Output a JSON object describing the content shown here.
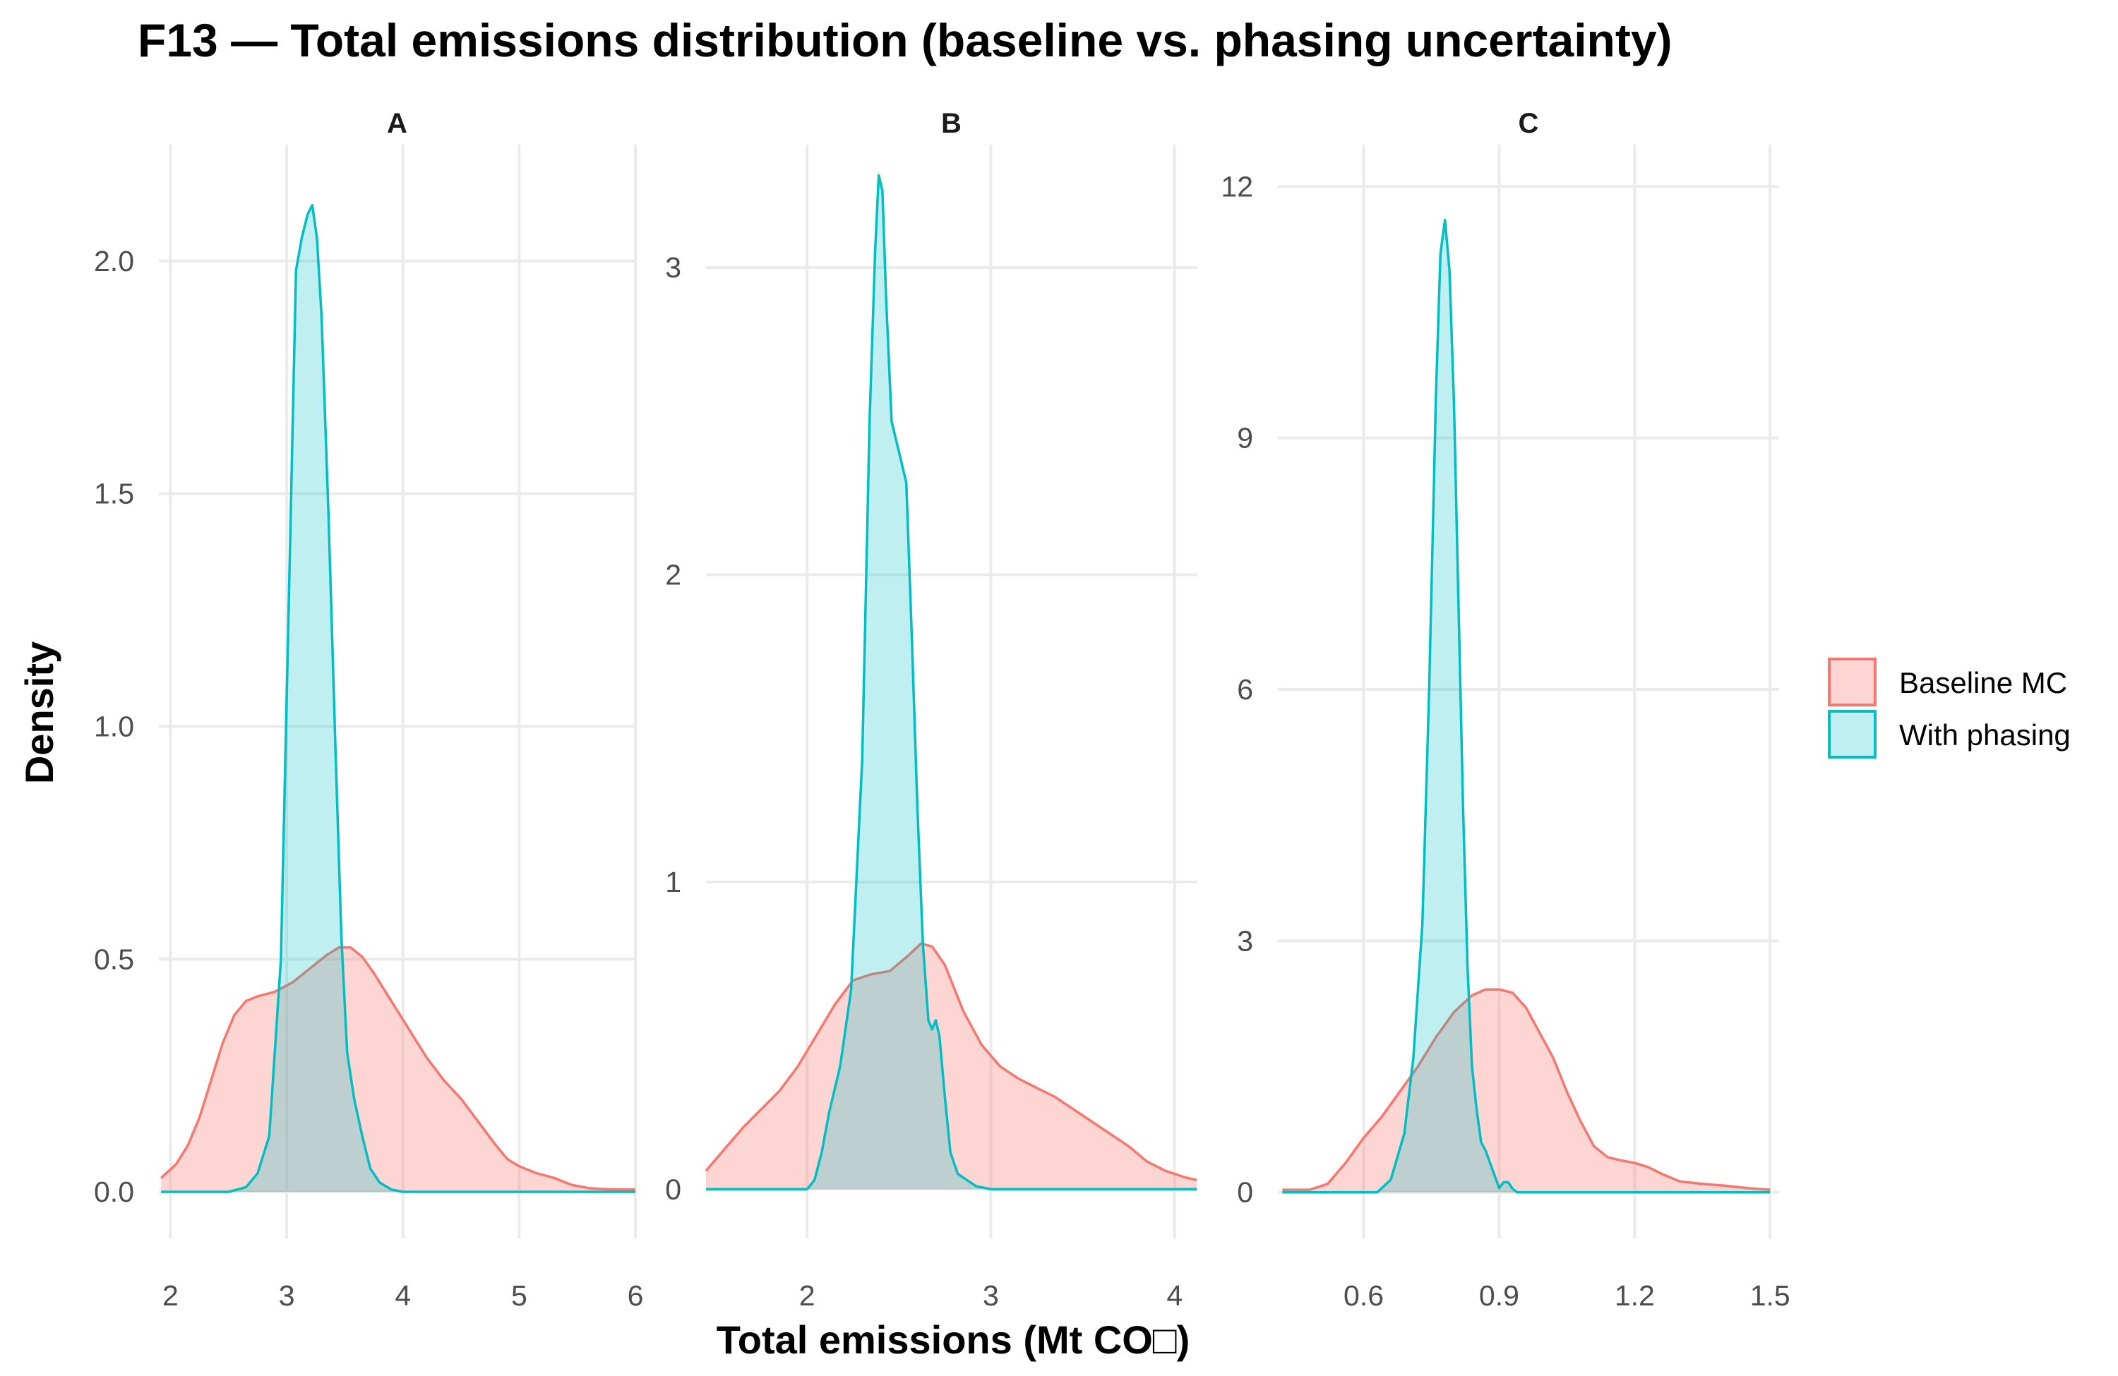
{
  "chart_data": {
    "type": "area",
    "title": "F13 — Total emissions distribution (baseline vs. phasing uncertainty)",
    "xlabel": "Total emissions (Mt CO□)",
    "ylabel": "Density",
    "legend": {
      "placement": "right",
      "entries": [
        "Baseline MC",
        "With phasing"
      ]
    },
    "colors": {
      "Baseline MC": {
        "line": "#F8766D",
        "fill": "#F8766D"
      },
      "With phasing": {
        "line": "#00BFC4",
        "fill": "#00BFC4"
      }
    },
    "grid": true,
    "panels": [
      {
        "label": "A",
        "xlim": [
          1.9,
          6.0
        ],
        "ylim": [
          -0.1,
          2.25
        ],
        "xticks": [
          2,
          3,
          4,
          5,
          6
        ],
        "xtick_labels": [
          "2",
          "3",
          "4",
          "5",
          "6"
        ],
        "yticks": [
          0,
          0.5,
          1.0,
          1.5,
          2.0
        ],
        "ytick_labels": [
          "0.0",
          "0.5",
          "1.0",
          "1.5",
          "2.0"
        ],
        "series": [
          {
            "name": "Baseline MC",
            "x": [
              1.92,
              2.05,
              2.15,
              2.25,
              2.35,
              2.45,
              2.55,
              2.65,
              2.75,
              2.9,
              3.05,
              3.2,
              3.35,
              3.45,
              3.55,
              3.65,
              3.75,
              3.85,
              3.95,
              4.05,
              4.2,
              4.35,
              4.5,
              4.65,
              4.8,
              4.9,
              5.0,
              5.15,
              5.3,
              5.45,
              5.6,
              5.8,
              6.0
            ],
            "y": [
              0.03,
              0.06,
              0.1,
              0.16,
              0.24,
              0.32,
              0.38,
              0.41,
              0.42,
              0.43,
              0.45,
              0.48,
              0.51,
              0.525,
              0.525,
              0.505,
              0.47,
              0.43,
              0.39,
              0.35,
              0.29,
              0.24,
              0.2,
              0.15,
              0.1,
              0.07,
              0.055,
              0.04,
              0.03,
              0.015,
              0.008,
              0.005,
              0.005
            ]
          },
          {
            "name": "With phasing",
            "x": [
              1.92,
              2.5,
              2.65,
              2.75,
              2.85,
              2.95,
              3.03,
              3.08,
              3.13,
              3.18,
              3.22,
              3.26,
              3.3,
              3.36,
              3.42,
              3.47,
              3.52,
              3.58,
              3.65,
              3.72,
              3.8,
              3.9,
              4.0,
              6.0
            ],
            "y": [
              0,
              0,
              0.01,
              0.04,
              0.12,
              0.5,
              1.4,
              1.98,
              2.05,
              2.1,
              2.12,
              2.05,
              1.88,
              1.45,
              0.95,
              0.55,
              0.3,
              0.2,
              0.12,
              0.05,
              0.02,
              0.005,
              0,
              0
            ]
          }
        ]
      },
      {
        "label": "B",
        "xlim": [
          1.45,
          4.12
        ],
        "ylim": [
          -0.16,
          3.4
        ],
        "xticks": [
          2,
          3,
          4
        ],
        "xtick_labels": [
          "2",
          "3",
          "4"
        ],
        "yticks": [
          0,
          1,
          2,
          3
        ],
        "ytick_labels": [
          "0",
          "1",
          "2",
          "3"
        ],
        "series": [
          {
            "name": "Baseline MC",
            "x": [
              1.45,
              1.55,
              1.65,
              1.75,
              1.85,
              1.95,
              2.05,
              2.15,
              2.25,
              2.35,
              2.45,
              2.55,
              2.62,
              2.68,
              2.75,
              2.85,
              2.95,
              3.05,
              3.15,
              3.25,
              3.35,
              3.45,
              3.55,
              3.65,
              3.75,
              3.85,
              3.95,
              4.05,
              4.12
            ],
            "y": [
              0.06,
              0.13,
              0.2,
              0.26,
              0.32,
              0.4,
              0.5,
              0.6,
              0.68,
              0.7,
              0.71,
              0.76,
              0.8,
              0.79,
              0.73,
              0.58,
              0.47,
              0.4,
              0.36,
              0.33,
              0.3,
              0.26,
              0.22,
              0.18,
              0.14,
              0.09,
              0.06,
              0.04,
              0.03
            ]
          },
          {
            "name": "With phasing",
            "x": [
              1.45,
              2.0,
              2.04,
              2.08,
              2.12,
              2.18,
              2.24,
              2.3,
              2.34,
              2.37,
              2.39,
              2.41,
              2.43,
              2.46,
              2.5,
              2.54,
              2.57,
              2.6,
              2.63,
              2.66,
              2.68,
              2.7,
              2.72,
              2.75,
              2.78,
              2.82,
              2.87,
              2.92,
              3.0,
              4.12
            ],
            "y": [
              0,
              0,
              0.03,
              0.12,
              0.25,
              0.4,
              0.65,
              1.4,
              2.5,
              3.05,
              3.3,
              3.25,
              2.9,
              2.5,
              2.4,
              2.3,
              1.8,
              1.25,
              0.8,
              0.55,
              0.52,
              0.55,
              0.5,
              0.3,
              0.12,
              0.05,
              0.03,
              0.01,
              0,
              0
            ]
          }
        ]
      },
      {
        "label": "C",
        "xlim": [
          0.41,
          1.52
        ],
        "ylim": [
          -0.55,
          12.5
        ],
        "xticks": [
          0.6,
          0.9,
          1.2,
          1.5
        ],
        "xtick_labels": [
          "0.6",
          "0.9",
          "1.2",
          "1.5"
        ],
        "yticks": [
          0,
          3,
          6,
          9,
          12
        ],
        "ytick_labels": [
          "0",
          "3",
          "6",
          "9",
          "12"
        ],
        "series": [
          {
            "name": "Baseline MC",
            "x": [
              0.42,
              0.48,
              0.52,
              0.56,
              0.6,
              0.64,
              0.68,
              0.72,
              0.76,
              0.8,
              0.84,
              0.87,
              0.9,
              0.93,
              0.96,
              0.99,
              1.02,
              1.05,
              1.08,
              1.11,
              1.14,
              1.17,
              1.2,
              1.23,
              1.26,
              1.3,
              1.35,
              1.4,
              1.45,
              1.5
            ],
            "y": [
              0.03,
              0.03,
              0.1,
              0.35,
              0.65,
              0.9,
              1.2,
              1.5,
              1.85,
              2.15,
              2.35,
              2.42,
              2.42,
              2.38,
              2.2,
              1.9,
              1.6,
              1.2,
              0.85,
              0.55,
              0.42,
              0.38,
              0.35,
              0.3,
              0.22,
              0.13,
              0.1,
              0.08,
              0.05,
              0.03
            ]
          },
          {
            "name": "With phasing",
            "x": [
              0.42,
              0.63,
              0.66,
              0.69,
              0.71,
              0.73,
              0.745,
              0.76,
              0.77,
              0.78,
              0.79,
              0.8,
              0.81,
              0.82,
              0.83,
              0.84,
              0.85,
              0.86,
              0.87,
              0.88,
              0.89,
              0.9,
              0.91,
              0.92,
              0.93,
              0.94,
              1.5
            ],
            "y": [
              0,
              0,
              0.15,
              0.7,
              1.6,
              3.2,
              6.0,
              9.5,
              11.2,
              11.6,
              11.0,
              9.4,
              7.0,
              4.6,
              2.7,
              1.5,
              1.0,
              0.6,
              0.5,
              0.35,
              0.2,
              0.05,
              0.12,
              0.12,
              0.04,
              0,
              0
            ]
          }
        ]
      }
    ]
  }
}
